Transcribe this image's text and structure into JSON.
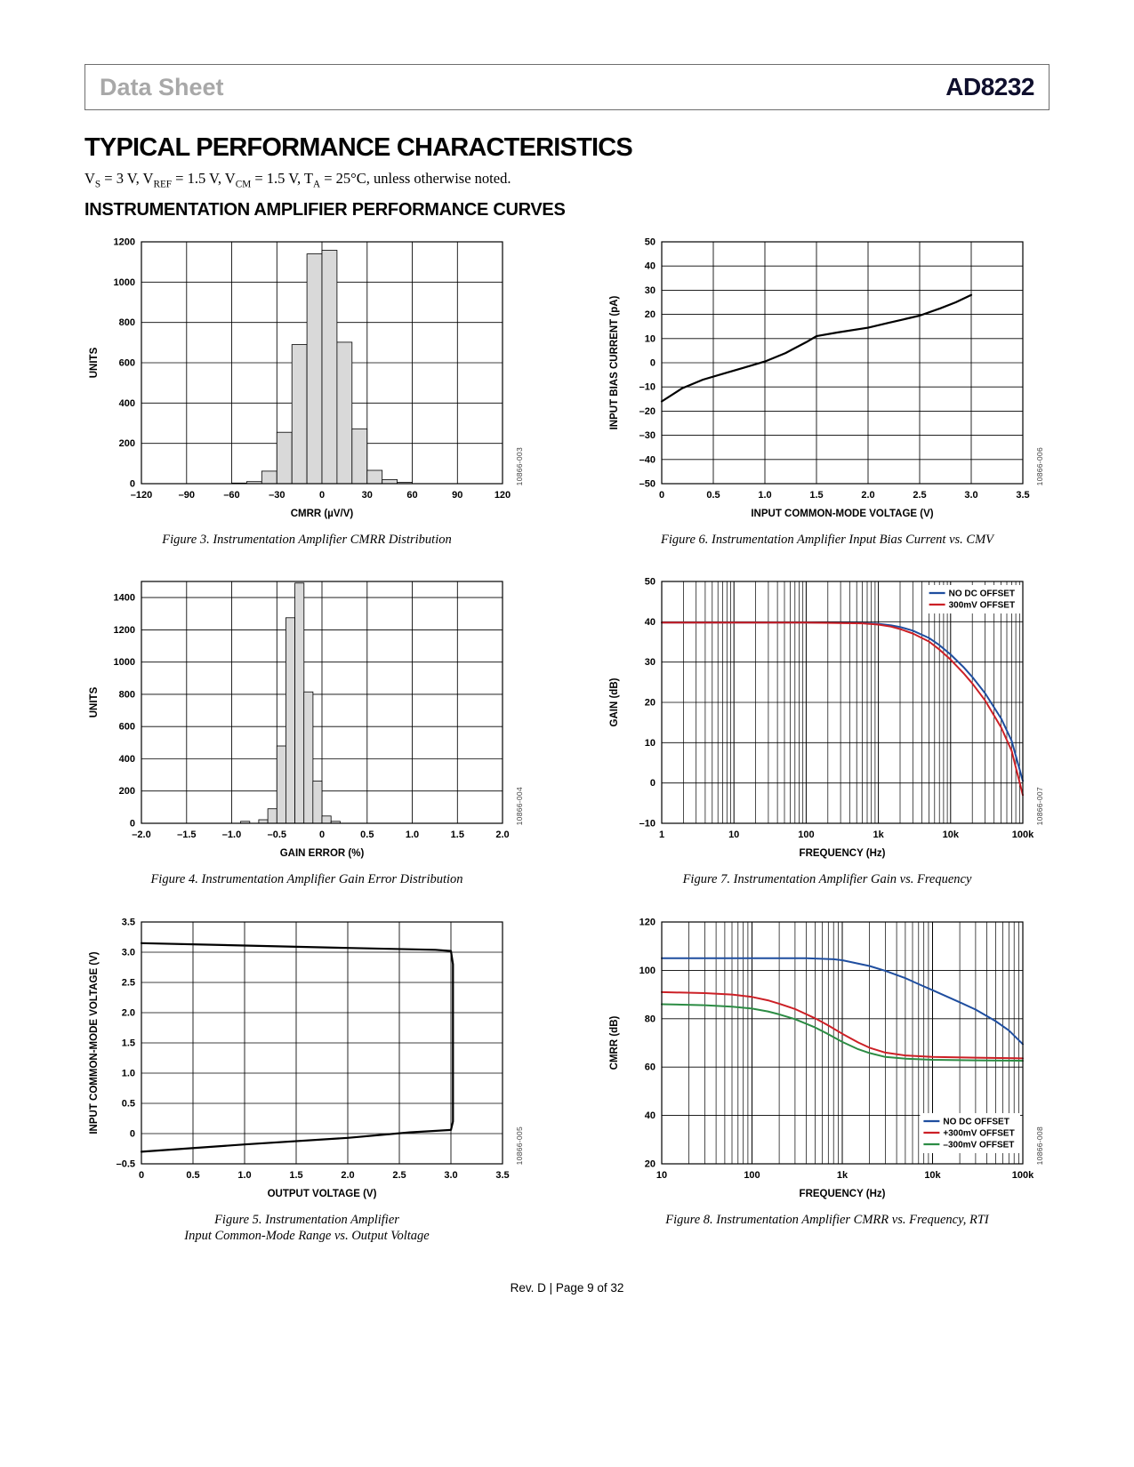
{
  "header": {
    "doc_type": "Data Sheet",
    "part_number": "AD8232"
  },
  "title": "TYPICAL PERFORMANCE CHARACTERISTICS",
  "conditions_parts": [
    {
      "t": "V"
    },
    {
      "sub": "S"
    },
    {
      "t": " = 3 V, V"
    },
    {
      "sub": "REF"
    },
    {
      "t": " = 1.5 V, V"
    },
    {
      "sub": "CM"
    },
    {
      "t": " = 1.5 V, T"
    },
    {
      "sub": "A"
    },
    {
      "t": " = 25°C, unless otherwise noted."
    }
  ],
  "section_heading": "INSTRUMENTATION AMPLIFIER PERFORMANCE CURVES",
  "footer": "Rev. D | Page 9 of 32",
  "colors": {
    "blue": "#1f4e9f",
    "red": "#cc2026",
    "green": "#2c8c44",
    "bar_fill": "#d9d9d9"
  },
  "chart_data": [
    {
      "id": "figure-3",
      "code": "10866-003",
      "caption": "Figure 3. Instrumentation Amplifier CMRR Distribution",
      "type": "bar",
      "x": {
        "scale": "linear",
        "min": -120,
        "max": 120,
        "ticks": [
          -120,
          -90,
          -60,
          -30,
          0,
          30,
          60,
          90,
          120
        ],
        "tick_labels": [
          "–120",
          "–90",
          "–60",
          "–30",
          "0",
          "30",
          "60",
          "90",
          "120"
        ],
        "label": "CMRR (µV/V)"
      },
      "y": {
        "min": 0,
        "max": 1200,
        "ticks": [
          0,
          200,
          400,
          600,
          800,
          1000,
          1200
        ],
        "label": "UNITS"
      },
      "bin_width": 10,
      "bars": [
        [
          -55,
          3
        ],
        [
          -45,
          10
        ],
        [
          -35,
          62
        ],
        [
          -25,
          255
        ],
        [
          -15,
          690
        ],
        [
          -5,
          1140
        ],
        [
          5,
          1158
        ],
        [
          15,
          702
        ],
        [
          25,
          272
        ],
        [
          35,
          66
        ],
        [
          45,
          20
        ],
        [
          55,
          6
        ]
      ]
    },
    {
      "id": "figure-4",
      "code": "10866-004",
      "caption": "Figure 4. Instrumentation Amplifier Gain Error Distribution",
      "type": "bar",
      "x": {
        "scale": "linear",
        "min": -2,
        "max": 2,
        "ticks": [
          -2,
          -1.5,
          -1,
          -0.5,
          0,
          0.5,
          1,
          1.5,
          2
        ],
        "tick_labels": [
          "–2.0",
          "–1.5",
          "–1.0",
          "–0.5",
          "0",
          "0.5",
          "1.0",
          "1.5",
          "2.0"
        ],
        "label": "GAIN ERROR (%)"
      },
      "y": {
        "min": 0,
        "max": 1500,
        "ticks": [
          0,
          200,
          400,
          600,
          800,
          1000,
          1200,
          1400
        ],
        "label": "UNITS"
      },
      "bin_width": 0.1,
      "bars": [
        [
          -0.85,
          12
        ],
        [
          -0.65,
          22
        ],
        [
          -0.55,
          90
        ],
        [
          -0.45,
          480
        ],
        [
          -0.35,
          1275
        ],
        [
          -0.25,
          1490
        ],
        [
          -0.15,
          815
        ],
        [
          -0.05,
          262
        ],
        [
          0.05,
          45
        ],
        [
          0.15,
          12
        ]
      ]
    },
    {
      "id": "figure-5",
      "code": "10866-005",
      "caption": "Figure 5. Instrumentation Amplifier\nInput Common-Mode Range vs. Output Voltage",
      "type": "line",
      "x": {
        "scale": "linear",
        "min": 0,
        "max": 3.5,
        "ticks": [
          0,
          0.5,
          1,
          1.5,
          2,
          2.5,
          3,
          3.5
        ],
        "tick_labels": [
          "0",
          "0.5",
          "1.0",
          "1.5",
          "2.0",
          "2.5",
          "3.0",
          "3.5"
        ],
        "label": "OUTPUT VOLTAGE (V)"
      },
      "y": {
        "min": -0.5,
        "max": 3.5,
        "ticks": [
          -0.5,
          0,
          0.5,
          1,
          1.5,
          2,
          2.5,
          3,
          3.5
        ],
        "tick_labels": [
          "–0.5",
          "0",
          "0.5",
          "1.0",
          "1.5",
          "2.0",
          "2.5",
          "3.0",
          "3.5"
        ],
        "label": "INPUT COMMON-MODE VOLTAGE (V)"
      },
      "series": [
        {
          "name": "common-mode range envelope",
          "color": "#000000",
          "width": 2.2,
          "points": [
            [
              0,
              3.15
            ],
            [
              1,
              3.11
            ],
            [
              2,
              3.07
            ],
            [
              2.85,
              3.04
            ],
            [
              3,
              3.02
            ],
            [
              3.02,
              2.8
            ],
            [
              3.02,
              0.2
            ],
            [
              3,
              0.06
            ],
            [
              2.6,
              0.02
            ],
            [
              2,
              -0.07
            ],
            [
              1,
              -0.18
            ],
            [
              0,
              -0.3
            ]
          ]
        }
      ]
    },
    {
      "id": "figure-6",
      "code": "10866-006",
      "caption": "Figure 6. Instrumentation Amplifier Input Bias Current vs. CMV",
      "type": "line",
      "x": {
        "scale": "linear",
        "min": 0,
        "max": 3.5,
        "ticks": [
          0,
          0.5,
          1,
          1.5,
          2,
          2.5,
          3,
          3.5
        ],
        "tick_labels": [
          "0",
          "0.5",
          "1.0",
          "1.5",
          "2.0",
          "2.5",
          "3.0",
          "3.5"
        ],
        "label": "INPUT COMMON-MODE VOLTAGE (V)"
      },
      "y": {
        "min": -50,
        "max": 50,
        "ticks": [
          -50,
          -40,
          -30,
          -20,
          -10,
          0,
          10,
          20,
          30,
          40,
          50
        ],
        "tick_labels": [
          "–50",
          "–40",
          "–30",
          "–20",
          "–10",
          "0",
          "10",
          "20",
          "30",
          "40",
          "50"
        ],
        "label": "INPUT BIAS CURRENT (pA)"
      },
      "series": [
        {
          "name": "input bias current",
          "color": "#000000",
          "width": 2.2,
          "points": [
            [
              0,
              -16
            ],
            [
              0.2,
              -10.5
            ],
            [
              0.4,
              -7
            ],
            [
              0.6,
              -4.5
            ],
            [
              0.8,
              -2
            ],
            [
              1,
              0.5
            ],
            [
              1.2,
              4
            ],
            [
              1.4,
              8.5
            ],
            [
              1.5,
              11
            ],
            [
              1.7,
              12.5
            ],
            [
              2,
              14.5
            ],
            [
              2.2,
              16.5
            ],
            [
              2.5,
              19.5
            ],
            [
              2.7,
              22.5
            ],
            [
              2.85,
              25
            ],
            [
              3,
              28
            ]
          ]
        }
      ]
    },
    {
      "id": "figure-7",
      "code": "10866-007",
      "caption": "Figure 7. Instrumentation Amplifier Gain vs. Frequency",
      "type": "line",
      "x": {
        "scale": "log",
        "min": 1,
        "max": 100000,
        "ticks": [
          1,
          10,
          100,
          1000,
          10000,
          100000
        ],
        "tick_labels": [
          "1",
          "10",
          "100",
          "1k",
          "10k",
          "100k"
        ],
        "label": "FREQUENCY (Hz)"
      },
      "y": {
        "min": -10,
        "max": 50,
        "ticks": [
          -10,
          0,
          10,
          20,
          30,
          40,
          50
        ],
        "tick_labels": [
          "–10",
          "0",
          "10",
          "20",
          "30",
          "40",
          "50"
        ],
        "label": "GAIN (dB)"
      },
      "legend": {
        "position": "top-right",
        "entries": [
          {
            "name": "NO DC OFFSET",
            "color": "#1f4e9f"
          },
          {
            "name": "300mV OFFSET",
            "color": "#cc2026"
          }
        ]
      },
      "series": [
        {
          "name": "NO DC OFFSET",
          "color": "#1f4e9f",
          "width": 2,
          "points": [
            [
              1,
              39.8
            ],
            [
              100,
              39.8
            ],
            [
              600,
              39.7
            ],
            [
              1000,
              39.5
            ],
            [
              1500,
              39.1
            ],
            [
              2000,
              38.7
            ],
            [
              3000,
              37.8
            ],
            [
              5000,
              36
            ],
            [
              7000,
              34.2
            ],
            [
              10000,
              31.9
            ],
            [
              15000,
              28.8
            ],
            [
              20000,
              26.3
            ],
            [
              30000,
              22.3
            ],
            [
              50000,
              16
            ],
            [
              70000,
              10.5
            ],
            [
              100000,
              0.5
            ]
          ]
        },
        {
          "name": "300mV OFFSET",
          "color": "#cc2026",
          "width": 2,
          "points": [
            [
              1,
              39.8
            ],
            [
              100,
              39.8
            ],
            [
              600,
              39.6
            ],
            [
              1000,
              39.3
            ],
            [
              1500,
              38.8
            ],
            [
              2000,
              38.2
            ],
            [
              3000,
              37.1
            ],
            [
              5000,
              35.1
            ],
            [
              7000,
              33.1
            ],
            [
              10000,
              30.6
            ],
            [
              15000,
              27.3
            ],
            [
              20000,
              24.7
            ],
            [
              30000,
              20.5
            ],
            [
              50000,
              13.8
            ],
            [
              70000,
              8
            ],
            [
              100000,
              -3
            ]
          ]
        }
      ]
    },
    {
      "id": "figure-8",
      "code": "10866-008",
      "caption": "Figure 8. Instrumentation Amplifier CMRR vs. Frequency, RTI",
      "type": "line",
      "x": {
        "scale": "log",
        "min": 10,
        "max": 100000,
        "ticks": [
          10,
          100,
          1000,
          10000,
          100000
        ],
        "tick_labels": [
          "10",
          "100",
          "1k",
          "10k",
          "100k"
        ],
        "label": "FREQUENCY (Hz)"
      },
      "y": {
        "min": 20,
        "max": 120,
        "ticks": [
          20,
          40,
          60,
          80,
          100,
          120
        ],
        "tick_labels": [
          "20",
          "40",
          "60",
          "80",
          "100",
          "120"
        ],
        "label": "CMRR (dB)"
      },
      "legend": {
        "position": "bottom-right",
        "entries": [
          {
            "name": "NO DC OFFSET",
            "color": "#1f4e9f"
          },
          {
            "name": "+300mV OFFSET",
            "color": "#cc2026"
          },
          {
            "name": "–300mV OFFSET",
            "color": "#2c8c44"
          }
        ]
      },
      "series": [
        {
          "name": "NO DC OFFSET",
          "color": "#1f4e9f",
          "width": 2,
          "points": [
            [
              10,
              105
            ],
            [
              100,
              105
            ],
            [
              400,
              105
            ],
            [
              800,
              104.6
            ],
            [
              1000,
              104.2
            ],
            [
              2000,
              101.8
            ],
            [
              3000,
              99.8
            ],
            [
              5000,
              96.8
            ],
            [
              7000,
              94.3
            ],
            [
              10000,
              91.8
            ],
            [
              20000,
              86.8
            ],
            [
              30000,
              83.8
            ],
            [
              50000,
              79
            ],
            [
              70000,
              75.2
            ],
            [
              100000,
              69.5
            ]
          ]
        },
        {
          "name": "+300mV OFFSET",
          "color": "#cc2026",
          "width": 2,
          "points": [
            [
              10,
              91
            ],
            [
              30,
              90.6
            ],
            [
              60,
              90
            ],
            [
              100,
              89
            ],
            [
              150,
              87.6
            ],
            [
              200,
              86.2
            ],
            [
              300,
              84
            ],
            [
              500,
              80.2
            ],
            [
              700,
              77.2
            ],
            [
              1000,
              73.8
            ],
            [
              1500,
              70.2
            ],
            [
              2000,
              68
            ],
            [
              3000,
              66
            ],
            [
              5000,
              64.8
            ],
            [
              10000,
              64.2
            ],
            [
              30000,
              63.9
            ],
            [
              100000,
              63.6
            ]
          ]
        },
        {
          "name": "–300mV OFFSET",
          "color": "#2c8c44",
          "width": 2,
          "points": [
            [
              10,
              86
            ],
            [
              30,
              85.6
            ],
            [
              60,
              85
            ],
            [
              100,
              84.2
            ],
            [
              150,
              83
            ],
            [
              200,
              81.8
            ],
            [
              300,
              79.8
            ],
            [
              500,
              76.4
            ],
            [
              700,
              73.6
            ],
            [
              1000,
              70.4
            ],
            [
              1500,
              67.4
            ],
            [
              2000,
              65.8
            ],
            [
              3000,
              64.2
            ],
            [
              5000,
              63.5
            ],
            [
              10000,
              63
            ],
            [
              30000,
              62.8
            ],
            [
              100000,
              62.6
            ]
          ]
        }
      ]
    }
  ]
}
